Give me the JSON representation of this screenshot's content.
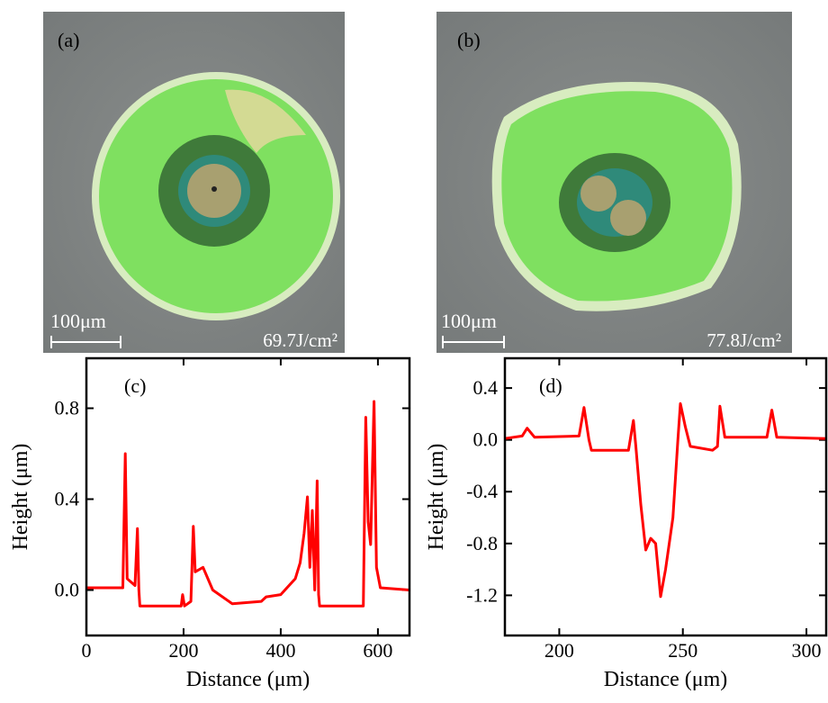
{
  "panels": [
    {
      "label": "(a)",
      "scale_bar": "100μm",
      "fluence": "69.7J/cm²"
    },
    {
      "label": "(b)",
      "scale_bar": "100μm",
      "fluence": "77.8J/cm²"
    }
  ],
  "chart_data": [
    {
      "type": "line",
      "annotation": "(c)",
      "x_label": "Distance (μm)",
      "y_label": "Height (μm)",
      "xlim": [
        0,
        665
      ],
      "ylim": [
        -0.2,
        1.02
      ],
      "xticks": [
        0,
        200,
        400,
        600
      ],
      "yticks": [
        {
          "value": 0,
          "label": "0.0"
        },
        {
          "value": 0.4,
          "label": "0.4"
        },
        {
          "value": 0.8,
          "label": "0.8"
        }
      ],
      "series": [
        {
          "color": "#ff0000",
          "x": [
            0,
            75,
            80,
            84,
            100,
            105,
            108,
            110,
            195,
            198,
            202,
            215,
            220,
            224,
            240,
            260,
            300,
            360,
            370,
            400,
            430,
            440,
            448,
            455,
            460,
            465,
            470,
            475,
            478,
            480,
            570,
            575,
            580,
            585,
            592,
            597,
            605,
            665
          ],
          "values": [
            0.01,
            0.01,
            0.6,
            0.05,
            0.02,
            0.27,
            0.0,
            -0.07,
            -0.07,
            -0.02,
            -0.07,
            -0.05,
            0.28,
            0.08,
            0.1,
            0.0,
            -0.06,
            -0.05,
            -0.03,
            -0.02,
            0.05,
            0.12,
            0.25,
            0.41,
            0.1,
            0.35,
            0.0,
            0.48,
            -0.02,
            -0.07,
            -0.07,
            0.76,
            0.3,
            0.2,
            0.83,
            0.1,
            0.01,
            0.0
          ]
        }
      ]
    },
    {
      "type": "line",
      "annotation": "(d)",
      "x_label": "Distance (μm)",
      "y_label": "Height (μm)",
      "xlim": [
        178,
        308
      ],
      "ylim": [
        -1.51,
        0.63
      ],
      "xticks": [
        200,
        250,
        300
      ],
      "yticks": [
        {
          "value": 0.4,
          "label": "0.4"
        },
        {
          "value": 0,
          "label": "0.0"
        },
        {
          "value": -0.4,
          "label": "-0.4"
        },
        {
          "value": -0.8,
          "label": "-0.8"
        },
        {
          "value": -1.2,
          "label": "-1.2"
        }
      ],
      "series": [
        {
          "color": "#ff0000",
          "x": [
            178,
            185,
            187,
            190,
            208,
            210,
            212,
            213,
            228,
            230,
            231,
            233,
            235,
            237,
            239,
            241,
            243,
            246,
            248,
            249,
            251,
            253,
            262,
            264,
            265,
            267,
            284,
            286,
            288,
            308
          ],
          "values": [
            0.01,
            0.03,
            0.09,
            0.02,
            0.03,
            0.25,
            0.0,
            -0.08,
            -0.08,
            0.15,
            -0.05,
            -0.5,
            -0.85,
            -0.76,
            -0.8,
            -1.21,
            -1.0,
            -0.6,
            0.0,
            0.28,
            0.1,
            -0.05,
            -0.08,
            -0.05,
            0.26,
            0.02,
            0.02,
            0.23,
            0.02,
            0.01
          ]
        }
      ]
    }
  ]
}
